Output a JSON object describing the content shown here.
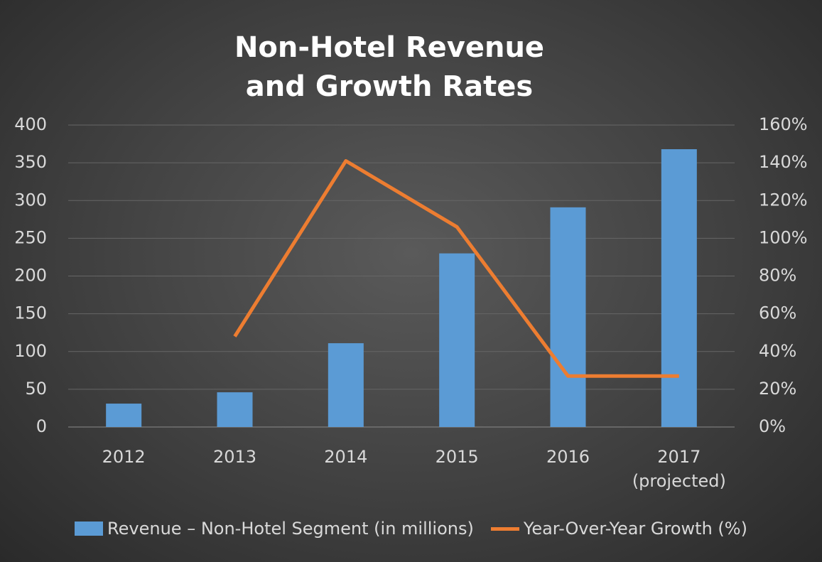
{
  "chart_data": {
    "type": "bar-line",
    "title": "Non-Hotel Revenue and Growth Rates",
    "categories": [
      "2012",
      "2013",
      "2014",
      "2015",
      "2016",
      "2017 (projected)"
    ],
    "series": [
      {
        "name": "Revenue – Non-Hotel Segment (in millions)",
        "type": "bar",
        "color": "#5b9bd5",
        "values": [
          31,
          46,
          111,
          230,
          291,
          368
        ]
      },
      {
        "name": "Year-Over-Year Growth (%)",
        "type": "line",
        "axis": "y2",
        "color": "#ed7d31",
        "values": [
          null,
          48,
          141,
          106,
          27,
          27
        ]
      }
    ],
    "ylim": [
      0,
      400
    ],
    "yticks": [
      0,
      50,
      100,
      150,
      200,
      250,
      300,
      350,
      400
    ],
    "y2lim": [
      0,
      160
    ],
    "y2ticks": [
      {
        "value": 0,
        "label": "0%"
      },
      {
        "value": 20,
        "label": "20%"
      },
      {
        "value": 40,
        "label": "40%"
      },
      {
        "value": 60,
        "label": "60%"
      },
      {
        "value": 80,
        "label": "80%"
      },
      {
        "value": 100,
        "label": "100%"
      },
      {
        "value": 120,
        "label": "120%"
      },
      {
        "value": 140,
        "label": "140%"
      },
      {
        "value": 160,
        "label": "160%"
      }
    ],
    "grid": true,
    "legend": "bottom"
  }
}
